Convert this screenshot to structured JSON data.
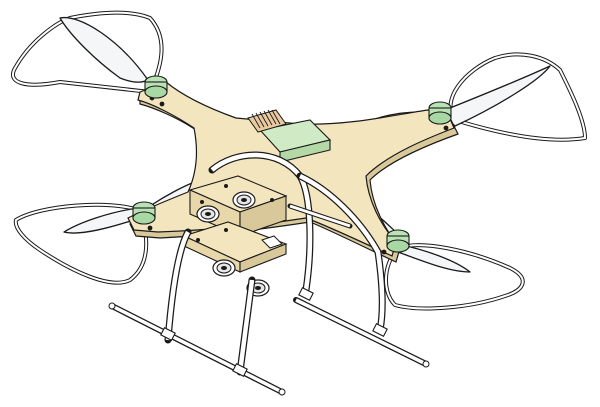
{
  "colors": {
    "frame": "#f3e6bf",
    "frame_dark": "#d9c89a",
    "motor": "#b9e3b4",
    "battery": "#cfeac4",
    "heatsink": "#e9c9a0",
    "guard": "#ffffff",
    "blade": "#f4f6f8",
    "outline": "#1a1a1a"
  },
  "icons": {
    "guards": [
      "prop-guard-icon"
    ],
    "motors": [
      "motor-icon"
    ],
    "cameras": [
      "camera-lens-icon"
    ]
  }
}
